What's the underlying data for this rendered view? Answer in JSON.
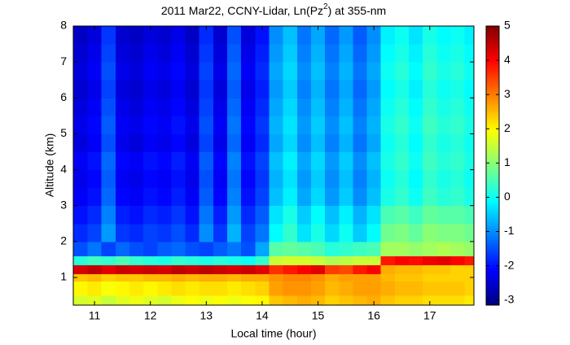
{
  "chart_data": {
    "type": "heatmap",
    "title": [
      "2011 Mar22, CCNY-Lidar, Ln(Pz",
      "2",
      ") at 355-nm"
    ],
    "x_label": "Local time (hour)",
    "y_label": "Altitude (km)",
    "colormap": "jet",
    "xlim": [
      10.62,
      17.79
    ],
    "ylim": [
      0.23,
      8
    ],
    "clim": [
      -3.15,
      5
    ],
    "xticks": [
      11,
      12,
      13,
      14,
      15,
      16,
      17
    ],
    "yticks": [
      1,
      2,
      3,
      4,
      5,
      6,
      7,
      8
    ],
    "cticks": [
      5,
      4,
      3,
      2,
      1,
      0,
      -1,
      -2,
      -3
    ],
    "x_bins": [
      10.62,
      10.875,
      11.125,
      11.375,
      11.625,
      11.875,
      12.125,
      12.375,
      12.625,
      12.875,
      13.125,
      13.375,
      13.625,
      13.875,
      14.125,
      14.375,
      14.625,
      14.875,
      15.125,
      15.375,
      15.625,
      15.875,
      16.125,
      16.375,
      16.625,
      16.875,
      17.125,
      17.375,
      17.625,
      17.79
    ],
    "y_bins": [
      0.23,
      0.5,
      0.9,
      1.1,
      1.35,
      1.6,
      2,
      2.5,
      3,
      3.5,
      4,
      4.5,
      5,
      5.5,
      6,
      6.5,
      7,
      7.5,
      8
    ],
    "z": [
      [
        1.6,
        1.7,
        1.5,
        1.7,
        1.8,
        1.7,
        1.6,
        1.8,
        1.9,
        1.8,
        1.9,
        1.8,
        1.9,
        2.0,
        2.4,
        2.5,
        2.6,
        2.5,
        2.3,
        2.4,
        2.5,
        2.6,
        2.4,
        2.3,
        2.3,
        2.2,
        2.2,
        2.2,
        2.1
      ],
      [
        2.0,
        2.1,
        1.9,
        2.0,
        2.1,
        2.0,
        2.1,
        2.2,
        2.1,
        2.2,
        2.2,
        2.1,
        2.2,
        2.3,
        2.7,
        2.8,
        2.8,
        2.7,
        2.5,
        2.6,
        2.7,
        2.7,
        2.6,
        2.5,
        2.5,
        2.4,
        2.4,
        2.4,
        2.3
      ],
      [
        2.4,
        2.5,
        2.3,
        2.4,
        2.4,
        2.5,
        2.5,
        2.6,
        2.5,
        2.6,
        2.6,
        2.5,
        2.6,
        2.6,
        2.8,
        2.9,
        2.9,
        2.8,
        2.6,
        2.7,
        2.7,
        2.7,
        2.5,
        2.4,
        2.4,
        2.3,
        2.3,
        2.3,
        2.3
      ],
      [
        4.3,
        4.5,
        4.2,
        4.4,
        4.3,
        4.4,
        4.3,
        4.5,
        4.4,
        4.5,
        4.4,
        4.3,
        4.4,
        4.2,
        3.6,
        3.8,
        4.0,
        4.2,
        3.5,
        3.4,
        3.8,
        4.0,
        2.6,
        2.5,
        2.5,
        2.4,
        2.4,
        2.3,
        2.3
      ],
      [
        0.2,
        0.4,
        0.3,
        0.5,
        0.3,
        0.2,
        0.1,
        0.3,
        0.2,
        0.1,
        0.2,
        0.1,
        0.0,
        0.3,
        1.5,
        1.6,
        1.6,
        1.5,
        1.3,
        1.4,
        1.5,
        1.5,
        3.8,
        4.0,
        3.9,
        4.1,
        4.2,
        4.0,
        3.8
      ],
      [
        -1.5,
        -1.2,
        -1.6,
        -1.3,
        -1.5,
        -1.6,
        -1.4,
        -1.3,
        -1.5,
        -1.6,
        -1.4,
        -1.2,
        -1.5,
        -0.8,
        0.6,
        0.7,
        0.6,
        0.5,
        0.2,
        0.3,
        0.4,
        0.5,
        1.2,
        1.2,
        1.1,
        1.2,
        1.3,
        1.2,
        1.1
      ],
      [
        -1.8,
        -1.6,
        -0.9,
        -1.7,
        -1.8,
        -1.6,
        -1.7,
        -1.5,
        -1.8,
        -1.0,
        -1.7,
        -0.7,
        -1.6,
        -1.2,
        -0.1,
        0.3,
        -0.3,
        0.1,
        -0.4,
        0.0,
        -0.5,
        -0.1,
        0.8,
        0.9,
        0.7,
        1.0,
        0.9,
        0.9,
        0.8
      ],
      [
        -2.0,
        -1.8,
        -1.1,
        -1.9,
        -2.0,
        -1.8,
        -1.9,
        -1.7,
        -2.0,
        -1.2,
        -1.9,
        -0.9,
        -1.8,
        -1.4,
        -0.3,
        0.1,
        -0.5,
        -0.1,
        -0.6,
        -0.2,
        -0.7,
        -0.3,
        0.5,
        0.6,
        0.4,
        0.7,
        0.6,
        0.6,
        0.5
      ],
      [
        -2.2,
        -2.0,
        -1.3,
        -2.1,
        -2.2,
        -2.0,
        -2.1,
        -1.9,
        -2.2,
        -1.4,
        -2.1,
        -1.1,
        -2.0,
        -1.6,
        -0.6,
        -0.2,
        -0.8,
        -0.4,
        -0.9,
        -0.5,
        -1.0,
        -0.6,
        0.1,
        0.3,
        0.0,
        0.4,
        0.2,
        0.3,
        0.1
      ],
      [
        -2.3,
        -2.1,
        -1.4,
        -2.2,
        -2.3,
        -2.1,
        -2.2,
        -2.0,
        -2.3,
        -1.5,
        -2.2,
        -1.2,
        -2.1,
        -1.7,
        -0.7,
        -0.3,
        -0.9,
        -0.5,
        -1.0,
        -0.6,
        -1.1,
        -0.7,
        0.0,
        0.2,
        -0.1,
        0.3,
        0.1,
        0.2,
        0.0
      ],
      [
        -2.2,
        -2.0,
        -1.3,
        -2.1,
        -2.2,
        -2.0,
        -2.1,
        -1.9,
        -2.2,
        -1.4,
        -2.1,
        -1.1,
        -2.0,
        -1.6,
        -0.6,
        -0.2,
        -0.8,
        -0.4,
        -0.9,
        -0.5,
        -1.0,
        -0.6,
        0.1,
        0.3,
        0.0,
        0.4,
        0.2,
        0.3,
        0.1
      ],
      [
        -2.4,
        -2.2,
        -1.5,
        -2.3,
        -2.4,
        -2.2,
        -2.3,
        -2.1,
        -2.4,
        -1.6,
        -2.3,
        -1.3,
        -2.2,
        -1.8,
        -0.8,
        -0.4,
        -1.0,
        -0.6,
        -1.1,
        -0.7,
        -1.2,
        -0.8,
        0.0,
        0.2,
        -0.1,
        0.3,
        0.1,
        0.2,
        0.0
      ],
      [
        -2.3,
        -2.1,
        -1.4,
        -2.2,
        -2.3,
        -2.1,
        -2.2,
        -2.0,
        -2.3,
        -1.5,
        -2.2,
        -1.2,
        -2.1,
        -1.7,
        -0.7,
        -0.3,
        -0.9,
        -0.5,
        -1.0,
        -0.6,
        -1.1,
        -0.7,
        0.1,
        0.3,
        0.0,
        0.4,
        0.2,
        0.3,
        0.1
      ],
      [
        -2.4,
        -2.2,
        -1.5,
        -2.3,
        -2.4,
        -2.2,
        -2.3,
        -2.1,
        -2.4,
        -1.6,
        -2.3,
        -1.3,
        -2.2,
        -1.8,
        -0.8,
        -0.4,
        -1.0,
        -0.6,
        -1.1,
        -0.7,
        -1.2,
        -0.8,
        0.0,
        0.2,
        -0.1,
        0.3,
        0.1,
        0.2,
        0.0
      ],
      [
        -2.5,
        -2.3,
        -1.6,
        -2.4,
        -2.5,
        -2.3,
        -2.4,
        -2.2,
        -2.5,
        -1.7,
        -2.4,
        -1.4,
        -2.3,
        -1.9,
        -0.9,
        -0.5,
        -1.1,
        -0.7,
        -1.2,
        -0.8,
        -1.3,
        -0.9,
        -0.1,
        0.1,
        -0.2,
        0.2,
        0.0,
        0.1,
        -0.1
      ],
      [
        -2.4,
        -2.2,
        -1.5,
        -2.3,
        -2.4,
        -2.2,
        -2.3,
        -2.1,
        -2.4,
        -1.6,
        -2.3,
        -1.3,
        -2.2,
        -1.8,
        -0.8,
        -0.4,
        -1.0,
        -0.6,
        -1.1,
        -0.7,
        -1.2,
        -0.8,
        0.0,
        0.2,
        -0.1,
        0.3,
        0.1,
        0.2,
        0.0
      ],
      [
        -2.5,
        -2.3,
        -1.6,
        -2.4,
        -2.5,
        -2.3,
        -2.4,
        -2.2,
        -2.5,
        -1.7,
        -2.4,
        -1.4,
        -2.3,
        -1.9,
        -0.9,
        -0.5,
        -1.1,
        -0.7,
        -1.2,
        -0.8,
        -1.3,
        -0.9,
        -0.1,
        0.1,
        -0.2,
        0.2,
        0.0,
        0.1,
        -0.1
      ],
      [
        -2.6,
        -2.4,
        -1.7,
        -2.5,
        -2.6,
        -2.4,
        -2.5,
        -2.3,
        -2.6,
        -1.8,
        -2.5,
        -1.5,
        -2.4,
        -2.0,
        -1.0,
        -0.6,
        -1.2,
        -0.8,
        -1.3,
        -0.9,
        -1.4,
        -1.0,
        -0.2,
        0.0,
        -0.3,
        0.1,
        -0.1,
        0.0,
        -0.2
      ]
    ]
  }
}
